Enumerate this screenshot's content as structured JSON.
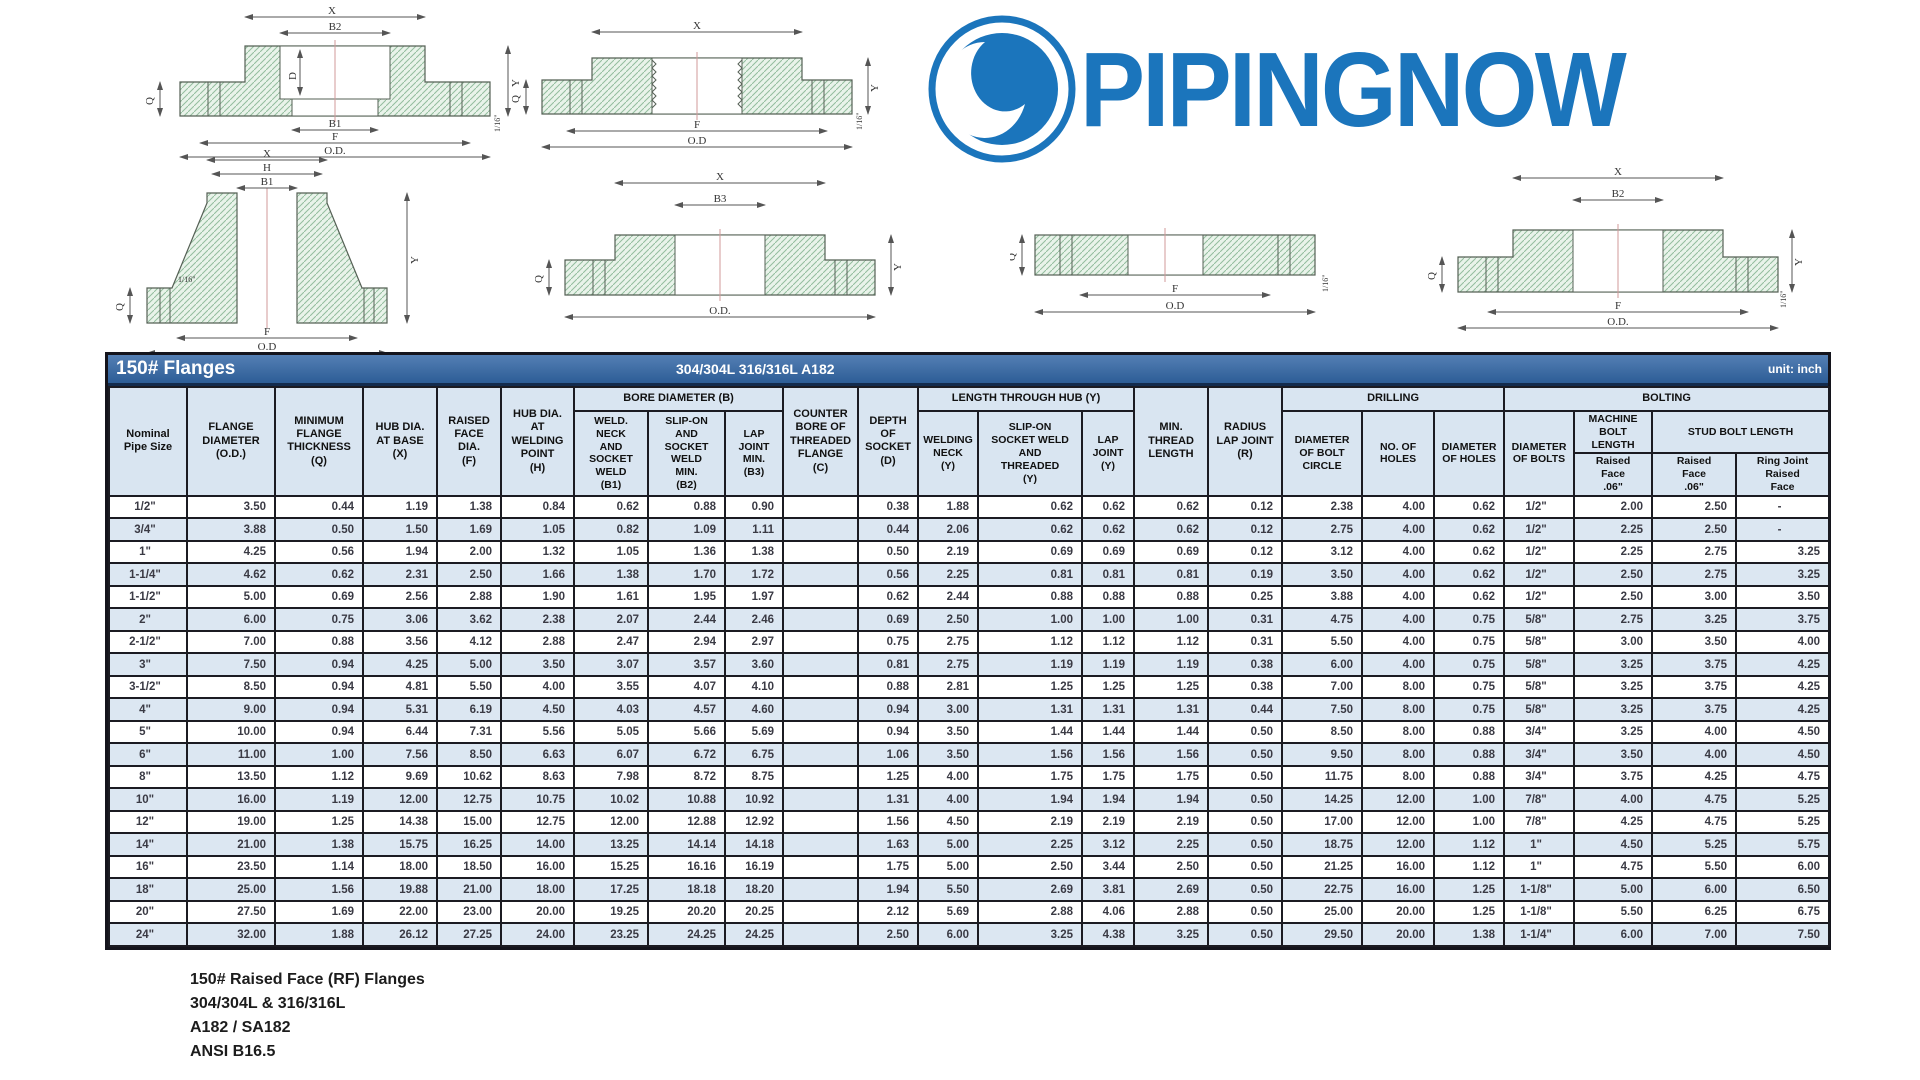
{
  "logo": {
    "text": "PIPINGNOW",
    "color": "#1b75bc"
  },
  "table": {
    "title": "150# Flanges",
    "subtitle": "304/304L  316/316L  A182",
    "unit": "unit: inch",
    "groups": {
      "bore": "BORE DIAMETER (B)",
      "hub": "LENGTH THROUGH HUB (Y)",
      "drilling": "DRILLING",
      "bolting": "BOLTING",
      "machine": "MACHINE\nBOLT\nLENGTH",
      "stud": "STUD BOLT LENGTH"
    },
    "headers": {
      "nominal": "Nominal\nPipe Size",
      "od": "FLANGE\nDIAMETER\n(O.D.)",
      "q": "MINIMUM\nFLANGE\nTHICKNESS\n(Q)",
      "x": "HUB DIA.\nAT BASE\n(X)",
      "f": "RAISED\nFACE\nDIA.\n(F)",
      "h": "HUB DIA.\nAT\nWELDING\nPOINT\n(H)",
      "b1": "WELD.\nNECK\nAND\nSOCKET\nWELD\n(B1)",
      "b2": "SLIP-ON\nAND\nSOCKET\nWELD\nMIN.\n(B2)",
      "b3": "LAP\nJOINT\nMIN.\n(B3)",
      "c": "COUNTER\nBORE OF\nTHREADED\nFLANGE\n(C)",
      "d": "DEPTH\nOF\nSOCKET\n(D)",
      "wn": "WELDING\nNECK\n(Y)",
      "so": "SLIP-ON\nSOCKET WELD\nAND\nTHREADED\n(Y)",
      "lj": "LAP\nJOINT\n(Y)",
      "thread": "MIN.\nTHREAD\nLENGTH",
      "radius": "RADIUS\nLAP JOINT\n(R)",
      "circle": "DIAMETER\nOF BOLT\nCIRCLE",
      "holes": "NO. OF\nHOLES",
      "diaholes": "DIAMETER\nOF HOLES",
      "diabolts": "DIAMETER\nOF BOLTS",
      "machine_rf": "Raised\nFace\n.06\"",
      "stud_rf": "Raised\nFace\n.06\"",
      "ring": "Ring Joint\nRaised\nFace"
    },
    "rows": [
      [
        "1/2\"",
        "3.50",
        "0.44",
        "1.19",
        "1.38",
        "0.84",
        "0.62",
        "0.88",
        "0.90",
        "",
        "0.38",
        "1.88",
        "0.62",
        "0.62",
        "0.62",
        "0.12",
        "2.38",
        "4.00",
        "0.62",
        "1/2\"",
        "2.00",
        "2.50",
        "-"
      ],
      [
        "3/4\"",
        "3.88",
        "0.50",
        "1.50",
        "1.69",
        "1.05",
        "0.82",
        "1.09",
        "1.11",
        "",
        "0.44",
        "2.06",
        "0.62",
        "0.62",
        "0.62",
        "0.12",
        "2.75",
        "4.00",
        "0.62",
        "1/2\"",
        "2.25",
        "2.50",
        "-"
      ],
      [
        "1\"",
        "4.25",
        "0.56",
        "1.94",
        "2.00",
        "1.32",
        "1.05",
        "1.36",
        "1.38",
        "",
        "0.50",
        "2.19",
        "0.69",
        "0.69",
        "0.69",
        "0.12",
        "3.12",
        "4.00",
        "0.62",
        "1/2\"",
        "2.25",
        "2.75",
        "3.25"
      ],
      [
        "1-1/4\"",
        "4.62",
        "0.62",
        "2.31",
        "2.50",
        "1.66",
        "1.38",
        "1.70",
        "1.72",
        "",
        "0.56",
        "2.25",
        "0.81",
        "0.81",
        "0.81",
        "0.19",
        "3.50",
        "4.00",
        "0.62",
        "1/2\"",
        "2.50",
        "2.75",
        "3.25"
      ],
      [
        "1-1/2\"",
        "5.00",
        "0.69",
        "2.56",
        "2.88",
        "1.90",
        "1.61",
        "1.95",
        "1.97",
        "",
        "0.62",
        "2.44",
        "0.88",
        "0.88",
        "0.88",
        "0.25",
        "3.88",
        "4.00",
        "0.62",
        "1/2\"",
        "2.50",
        "3.00",
        "3.50"
      ],
      [
        "2\"",
        "6.00",
        "0.75",
        "3.06",
        "3.62",
        "2.38",
        "2.07",
        "2.44",
        "2.46",
        "",
        "0.69",
        "2.50",
        "1.00",
        "1.00",
        "1.00",
        "0.31",
        "4.75",
        "4.00",
        "0.75",
        "5/8\"",
        "2.75",
        "3.25",
        "3.75"
      ],
      [
        "2-1/2\"",
        "7.00",
        "0.88",
        "3.56",
        "4.12",
        "2.88",
        "2.47",
        "2.94",
        "2.97",
        "",
        "0.75",
        "2.75",
        "1.12",
        "1.12",
        "1.12",
        "0.31",
        "5.50",
        "4.00",
        "0.75",
        "5/8\"",
        "3.00",
        "3.50",
        "4.00"
      ],
      [
        "3\"",
        "7.50",
        "0.94",
        "4.25",
        "5.00",
        "3.50",
        "3.07",
        "3.57",
        "3.60",
        "",
        "0.81",
        "2.75",
        "1.19",
        "1.19",
        "1.19",
        "0.38",
        "6.00",
        "4.00",
        "0.75",
        "5/8\"",
        "3.25",
        "3.75",
        "4.25"
      ],
      [
        "3-1/2\"",
        "8.50",
        "0.94",
        "4.81",
        "5.50",
        "4.00",
        "3.55",
        "4.07",
        "4.10",
        "",
        "0.88",
        "2.81",
        "1.25",
        "1.25",
        "1.25",
        "0.38",
        "7.00",
        "8.00",
        "0.75",
        "5/8\"",
        "3.25",
        "3.75",
        "4.25"
      ],
      [
        "4\"",
        "9.00",
        "0.94",
        "5.31",
        "6.19",
        "4.50",
        "4.03",
        "4.57",
        "4.60",
        "",
        "0.94",
        "3.00",
        "1.31",
        "1.31",
        "1.31",
        "0.44",
        "7.50",
        "8.00",
        "0.75",
        "5/8\"",
        "3.25",
        "3.75",
        "4.25"
      ],
      [
        "5\"",
        "10.00",
        "0.94",
        "6.44",
        "7.31",
        "5.56",
        "5.05",
        "5.66",
        "5.69",
        "",
        "0.94",
        "3.50",
        "1.44",
        "1.44",
        "1.44",
        "0.50",
        "8.50",
        "8.00",
        "0.88",
        "3/4\"",
        "3.25",
        "4.00",
        "4.50"
      ],
      [
        "6\"",
        "11.00",
        "1.00",
        "7.56",
        "8.50",
        "6.63",
        "6.07",
        "6.72",
        "6.75",
        "",
        "1.06",
        "3.50",
        "1.56",
        "1.56",
        "1.56",
        "0.50",
        "9.50",
        "8.00",
        "0.88",
        "3/4\"",
        "3.50",
        "4.00",
        "4.50"
      ],
      [
        "8\"",
        "13.50",
        "1.12",
        "9.69",
        "10.62",
        "8.63",
        "7.98",
        "8.72",
        "8.75",
        "",
        "1.25",
        "4.00",
        "1.75",
        "1.75",
        "1.75",
        "0.50",
        "11.75",
        "8.00",
        "0.88",
        "3/4\"",
        "3.75",
        "4.25",
        "4.75"
      ],
      [
        "10\"",
        "16.00",
        "1.19",
        "12.00",
        "12.75",
        "10.75",
        "10.02",
        "10.88",
        "10.92",
        "",
        "1.31",
        "4.00",
        "1.94",
        "1.94",
        "1.94",
        "0.50",
        "14.25",
        "12.00",
        "1.00",
        "7/8\"",
        "4.00",
        "4.75",
        "5.25"
      ],
      [
        "12\"",
        "19.00",
        "1.25",
        "14.38",
        "15.00",
        "12.75",
        "12.00",
        "12.88",
        "12.92",
        "",
        "1.56",
        "4.50",
        "2.19",
        "2.19",
        "2.19",
        "0.50",
        "17.00",
        "12.00",
        "1.00",
        "7/8\"",
        "4.25",
        "4.75",
        "5.25"
      ],
      [
        "14\"",
        "21.00",
        "1.38",
        "15.75",
        "16.25",
        "14.00",
        "13.25",
        "14.14",
        "14.18",
        "",
        "1.63",
        "5.00",
        "2.25",
        "3.12",
        "2.25",
        "0.50",
        "18.75",
        "12.00",
        "1.12",
        "1\"",
        "4.50",
        "5.25",
        "5.75"
      ],
      [
        "16\"",
        "23.50",
        "1.14",
        "18.00",
        "18.50",
        "16.00",
        "15.25",
        "16.16",
        "16.19",
        "",
        "1.75",
        "5.00",
        "2.50",
        "3.44",
        "2.50",
        "0.50",
        "21.25",
        "16.00",
        "1.12",
        "1\"",
        "4.75",
        "5.50",
        "6.00"
      ],
      [
        "18\"",
        "25.00",
        "1.56",
        "19.88",
        "21.00",
        "18.00",
        "17.25",
        "18.18",
        "18.20",
        "",
        "1.94",
        "5.50",
        "2.69",
        "3.81",
        "2.69",
        "0.50",
        "22.75",
        "16.00",
        "1.25",
        "1-1/8\"",
        "5.00",
        "6.00",
        "6.50"
      ],
      [
        "20\"",
        "27.50",
        "1.69",
        "22.00",
        "23.00",
        "20.00",
        "19.25",
        "20.20",
        "20.25",
        "",
        "2.12",
        "5.69",
        "2.88",
        "4.06",
        "2.88",
        "0.50",
        "25.00",
        "20.00",
        "1.25",
        "1-1/8\"",
        "5.50",
        "6.25",
        "6.75"
      ],
      [
        "24\"",
        "32.00",
        "1.88",
        "26.12",
        "27.25",
        "24.00",
        "23.25",
        "24.25",
        "24.25",
        "",
        "2.50",
        "6.00",
        "3.25",
        "4.38",
        "3.25",
        "0.50",
        "29.50",
        "20.00",
        "1.38",
        "1-1/4\"",
        "6.00",
        "7.00",
        "7.50"
      ]
    ]
  },
  "footnote": {
    "text": "150# Raised Face (RF) Flanges\n304/304L & 316/316L\nA182 / SA182\nANSI B16.5"
  },
  "drawings": {
    "d1": {
      "x": "X",
      "b2": "B2",
      "d": "D",
      "b1": "B1",
      "f": "F",
      "od": "O.D.",
      "q": "Q",
      "y": "Y",
      "tol": "1/16\""
    },
    "d2": {
      "x": "X",
      "f": "F",
      "od": "O.D",
      "q": "Q",
      "y": "Y",
      "tol": "1/16\""
    },
    "d3": {
      "x": "X",
      "h": "H",
      "b1": "B1",
      "tol": "1/16\"",
      "q": "Q",
      "f": "F",
      "od": "O.D",
      "y": "Y"
    },
    "d4": {
      "x": "X",
      "b3": "B3",
      "od": "O.D.",
      "q": "Q",
      "y": "Y"
    },
    "d5": {
      "q": "Q",
      "f": "F",
      "od": "O.D",
      "tol": "1/16\""
    },
    "d6": {
      "x": "X",
      "b2": "B2",
      "q": "Q",
      "y": "Y",
      "f": "F",
      "od": "O.D.",
      "tol": "1/16\""
    }
  }
}
